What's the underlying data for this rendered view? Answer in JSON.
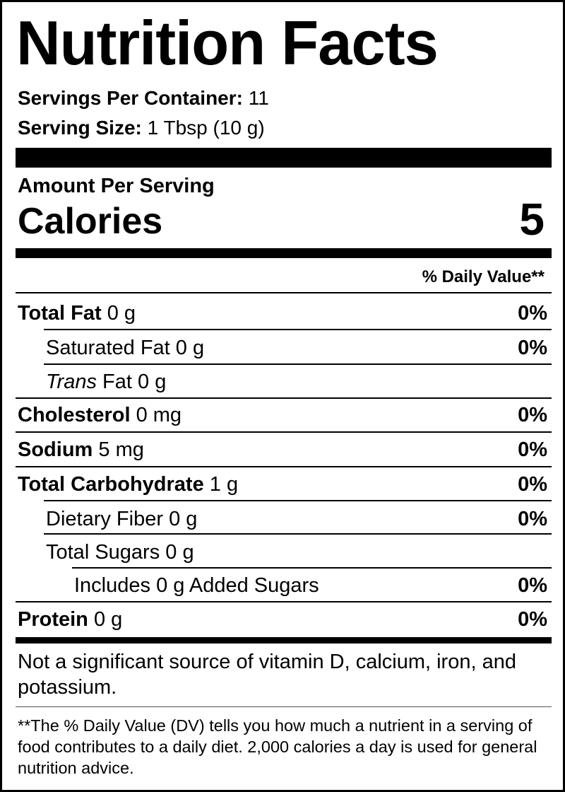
{
  "header": {
    "title": "Nutrition Facts",
    "servings_per_container": {
      "label": "Servings Per Container:",
      "value": "11"
    },
    "serving_size": {
      "label": "Serving Size:",
      "value": "1 Tbsp (10 g)"
    }
  },
  "calories": {
    "heading": "Amount Per Serving",
    "label": "Calories",
    "value": 5
  },
  "daily_value_heading": "% Daily Value**",
  "rows": [
    {
      "name": "Total Fat",
      "amount": "0 g",
      "dv": "0%"
    },
    {
      "name": "Saturated Fat",
      "amount": "0 g",
      "dv": "0%"
    },
    {
      "name_italic": "Trans",
      "name": "Fat",
      "amount": "0 g"
    },
    {
      "name": "Cholesterol",
      "amount": "0 mg",
      "dv": "0%"
    },
    {
      "name": "Sodium",
      "amount": "5 mg",
      "dv": "0%"
    },
    {
      "name": "Total Carbohydrate",
      "amount": "1 g",
      "dv": "0%"
    },
    {
      "name": "Dietary Fiber",
      "amount": "0 g",
      "dv": "0%"
    },
    {
      "name": "Total Sugars",
      "amount": "0 g"
    },
    {
      "name": "Includes",
      "amount": "0 g",
      "name_after": "Added Sugars",
      "dv": "0%"
    },
    {
      "name": "Protein",
      "amount": "0 g",
      "dv": "0%"
    }
  ],
  "footnotes": {
    "vitamins": "Not a significant source of vitamin D, calcium, iron, and potassium.",
    "daily_value": "**The % Daily Value (DV) tells you how much a nutrient in a serving of food contributes to a daily diet. 2,000 calories a day is used for general nutrition advice."
  }
}
